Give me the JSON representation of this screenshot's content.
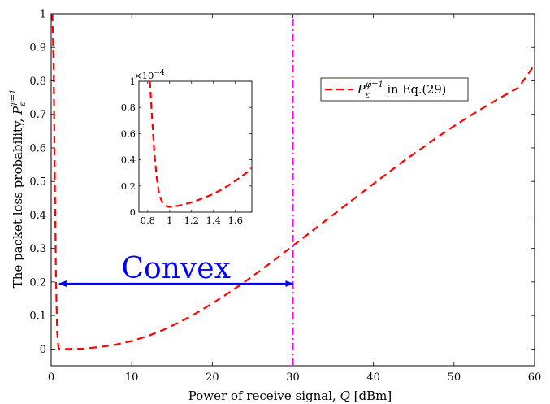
{
  "chart_data": {
    "type": "line",
    "xlabel": "Power of receive signal, Q [dBm]",
    "ylabel": "The packet loss probability, P_ε^{φ=1}",
    "xlim": [
      0,
      60
    ],
    "ylim": [
      -0.05,
      1
    ],
    "x_ticks": [
      "0",
      "10",
      "20",
      "30",
      "40",
      "50",
      "60"
    ],
    "y_ticks": [
      "0",
      "0.1",
      "0.2",
      "0.3",
      "0.4",
      "0.5",
      "0.6",
      "0.7",
      "0.8",
      "0.9",
      "1"
    ],
    "legend_position": "top-right",
    "grid": false,
    "series": [
      {
        "name": "P_ε^{φ=1} in Eq.(29)",
        "color": "#ff0000",
        "style": "dashed",
        "x": [
          0.15,
          0.3,
          0.45,
          0.6,
          0.75,
          0.9,
          1.0,
          2,
          4,
          6,
          8,
          10,
          12,
          14,
          16,
          18,
          20,
          22,
          24,
          26,
          28,
          30,
          32,
          34,
          36,
          38,
          40,
          42,
          44,
          46,
          48,
          50,
          52,
          54,
          56,
          58,
          60
        ],
        "y": [
          1.0,
          0.85,
          0.5,
          0.2,
          0.05,
          0.005,
          0.0,
          0.0,
          0.001,
          0.006,
          0.013,
          0.024,
          0.039,
          0.058,
          0.081,
          0.107,
          0.136,
          0.167,
          0.2,
          0.235,
          0.271,
          0.308,
          0.345,
          0.382,
          0.419,
          0.456,
          0.493,
          0.529,
          0.565,
          0.599,
          0.633,
          0.665,
          0.696,
          0.725,
          0.753,
          0.78,
          0.848
        ]
      }
    ],
    "vertical_line": {
      "x": 30,
      "color": "#ff00ff",
      "style": "dash-dot"
    },
    "arrow": {
      "x_start": 1,
      "x_end": 30,
      "y": 0.195,
      "color": "#0000ff",
      "label": "Convex"
    },
    "inset": {
      "type": "line",
      "xlim": [
        0.72,
        1.75
      ],
      "ylim": [
        0,
        1
      ],
      "y_exponent": "×10^{-4}",
      "x_ticks": [
        "0.8",
        "1",
        "1.2",
        "1.4",
        "1.6"
      ],
      "y_ticks": [
        "0",
        "0.2",
        "0.4",
        "0.6",
        "0.8",
        "1"
      ],
      "series": [
        {
          "color": "#ff0000",
          "style": "dashed",
          "x": [
            0.82,
            0.84,
            0.86,
            0.88,
            0.9,
            0.92,
            0.94,
            0.96,
            0.98,
            1.0,
            1.05,
            1.1,
            1.2,
            1.3,
            1.4,
            1.5,
            1.6,
            1.7,
            1.75
          ],
          "y": [
            1.0,
            0.72,
            0.46,
            0.28,
            0.16,
            0.1,
            0.065,
            0.05,
            0.042,
            0.04,
            0.045,
            0.052,
            0.075,
            0.105,
            0.14,
            0.185,
            0.24,
            0.3,
            0.34
          ]
        }
      ]
    }
  },
  "labels": {
    "legend_symbol": "P",
    "legend_sub": "ε",
    "legend_sup": "φ=1",
    "legend_rest": " in Eq.(29)",
    "ylabel_text": "The packet loss probability, ",
    "ylabel_symbol": "P",
    "ylabel_sub": "ε",
    "ylabel_sup": "φ=1",
    "xlabel_text": "Power of receive signal, ",
    "xlabel_symbol": "Q",
    "xlabel_unit": " [dBm]",
    "inset_exp_base": "×10",
    "inset_exp_power": "−4",
    "arrow_label": "Convex"
  }
}
